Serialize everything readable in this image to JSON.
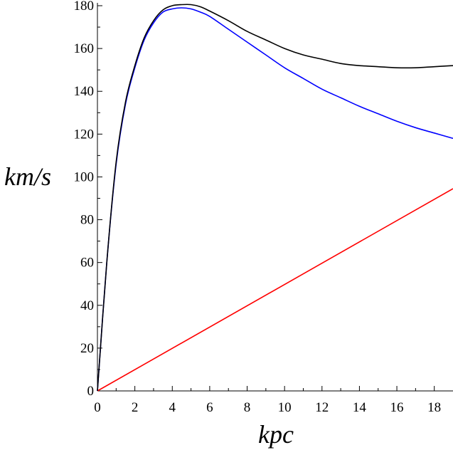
{
  "chart_data": {
    "type": "line",
    "xlabel": "kpc",
    "ylabel": "km/s",
    "xlim": [
      0,
      19
    ],
    "ylim": [
      0,
      181
    ],
    "grid": false,
    "x_ticks": [
      0,
      2,
      4,
      6,
      8,
      10,
      12,
      14,
      16,
      18
    ],
    "y_ticks": [
      0,
      20,
      40,
      60,
      80,
      100,
      120,
      140,
      160,
      180
    ],
    "series": [
      {
        "color": "#000000",
        "x": [
          0,
          0.5,
          1,
          1.5,
          2,
          2.5,
          3,
          3.5,
          4,
          4.5,
          5,
          5.5,
          6,
          7,
          8,
          9,
          10,
          11,
          12,
          13,
          14,
          15,
          16,
          17,
          18,
          19
        ],
        "y": [
          0,
          60,
          107,
          135,
          152,
          165,
          173,
          178,
          180,
          180.5,
          180.5,
          179.5,
          177.5,
          173,
          168,
          164,
          160,
          157,
          155,
          153,
          152,
          151.5,
          151,
          151,
          151.5,
          152
        ]
      },
      {
        "color": "#0000ff",
        "x": [
          0,
          0.5,
          1,
          1.5,
          2,
          2.5,
          3,
          3.5,
          4,
          4.5,
          5,
          5.5,
          6,
          7,
          8,
          9,
          10,
          11,
          12,
          13,
          14,
          15,
          16,
          17,
          18,
          19
        ],
        "y": [
          0,
          60,
          106,
          134,
          151,
          164,
          172,
          177,
          178.5,
          179,
          178.5,
          177,
          175,
          169,
          163,
          157,
          151,
          146,
          141,
          137,
          133,
          129.5,
          126,
          123,
          120.5,
          118
        ]
      },
      {
        "color": "#ff0000",
        "x": [
          0,
          19
        ],
        "y": [
          0,
          94.5
        ]
      }
    ]
  }
}
